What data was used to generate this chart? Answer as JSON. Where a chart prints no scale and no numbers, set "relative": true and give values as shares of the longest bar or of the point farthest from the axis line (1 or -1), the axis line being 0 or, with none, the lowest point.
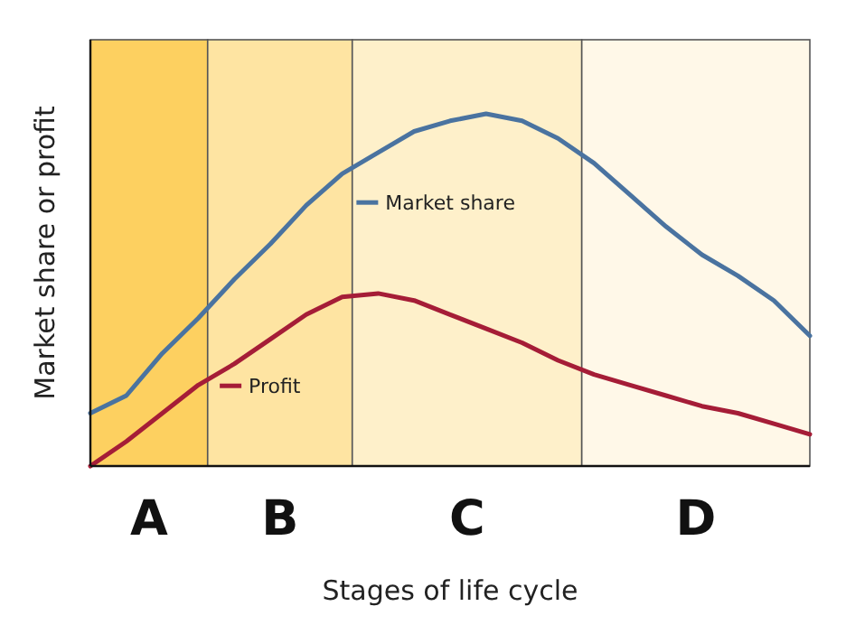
{
  "chart_data": {
    "type": "line",
    "relative": true,
    "xlabel": "Stages of life cycle",
    "ylabel": "Market share or profit",
    "line_style": "solid",
    "legend": "center",
    "categories": [
      null,
      null,
      null,
      null,
      null,
      null,
      null,
      null,
      null,
      null,
      null,
      null,
      null,
      null,
      null,
      null,
      null,
      null,
      null,
      null,
      null
    ],
    "annotations": [
      "A",
      "B",
      "C",
      "D"
    ],
    "series": [
      {
        "name": "Market share",
        "color": "#4a73a0",
        "values": [
          0.15,
          0.2,
          0.32,
          0.42,
          0.53,
          0.63,
          0.74,
          0.83,
          0.89,
          0.95,
          0.98,
          1,
          0.98,
          0.93,
          0.86,
          0.77,
          0.68,
          0.6,
          0.54,
          0.47,
          0.37
        ]
      },
      {
        "name": "Profit",
        "color": "#a51d37",
        "values": [
          0,
          0.07,
          0.15,
          0.23,
          0.29,
          0.36,
          0.43,
          0.48,
          0.49,
          0.47,
          0.43,
          0.39,
          0.35,
          0.3,
          0.26,
          0.23,
          0.2,
          0.17,
          0.15,
          0.12,
          0.09
        ]
      }
    ]
  }
}
